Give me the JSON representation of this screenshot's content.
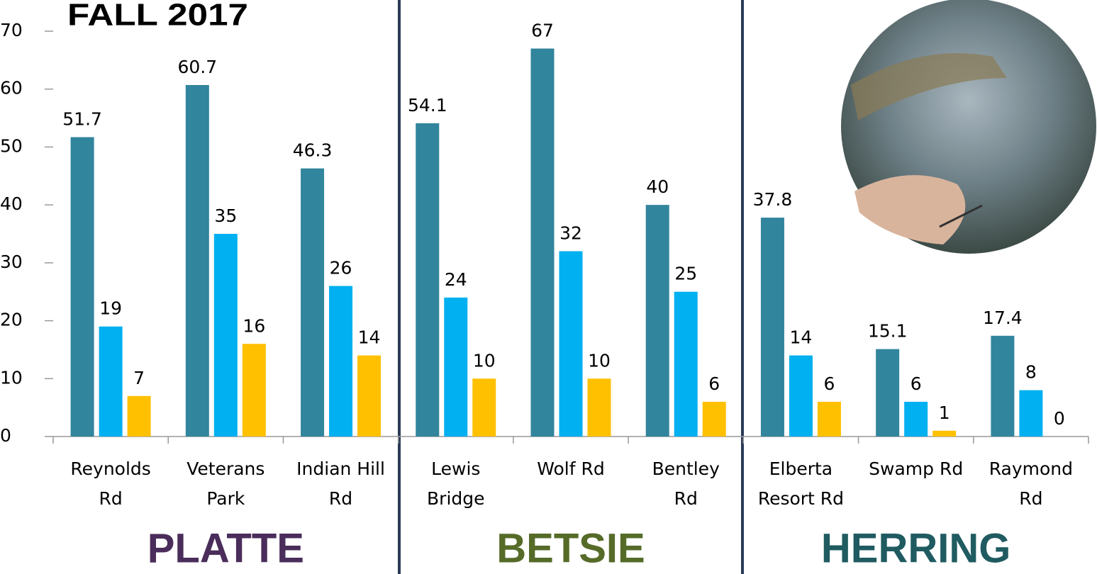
{
  "chart_data": {
    "type": "bar",
    "title": "FALL 2017",
    "title_color": "#9c4f1b",
    "categories": [
      [
        "Reynolds",
        "Rd"
      ],
      [
        "Veterans",
        "Park"
      ],
      [
        "Indian Hill",
        "Rd"
      ],
      [
        "Lewis",
        "Bridge"
      ],
      [
        "Wolf Rd"
      ],
      [
        "Bentley",
        "Rd"
      ],
      [
        "Elberta",
        "Resort Rd"
      ],
      [
        "Swamp Rd"
      ],
      [
        "Raymond",
        "Rd"
      ]
    ],
    "series": [
      {
        "color": "#31859c",
        "values": [
          51.7,
          60.7,
          46.3,
          54.1,
          67,
          40,
          37.8,
          15.1,
          17.4
        ]
      },
      {
        "color": "#00b0f0",
        "values": [
          19,
          35,
          26,
          24,
          32,
          25,
          14,
          6,
          8
        ]
      },
      {
        "color": "#ffc000",
        "values": [
          7,
          16,
          14,
          10,
          10,
          6,
          6,
          1,
          0
        ]
      }
    ],
    "groups": [
      {
        "label": "PLATTE",
        "color": "#4a2d5a"
      },
      {
        "label": "BETSIE",
        "color": "#566b28"
      },
      {
        "label": "HERRING",
        "color": "#1f5b60"
      }
    ],
    "ylim": [
      0,
      70
    ],
    "yticks": [
      0,
      10,
      20,
      30,
      40,
      50,
      60,
      70
    ],
    "grid": false
  }
}
